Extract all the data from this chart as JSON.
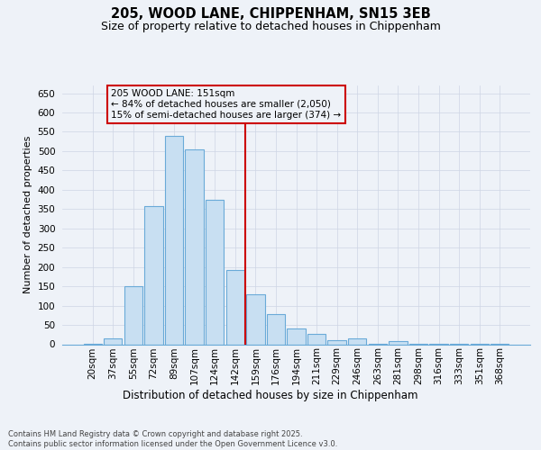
{
  "title1": "205, WOOD LANE, CHIPPENHAM, SN15 3EB",
  "title2": "Size of property relative to detached houses in Chippenham",
  "xlabel": "Distribution of detached houses by size in Chippenham",
  "ylabel": "Number of detached properties",
  "categories": [
    "20sqm",
    "37sqm",
    "55sqm",
    "72sqm",
    "89sqm",
    "107sqm",
    "124sqm",
    "142sqm",
    "159sqm",
    "176sqm",
    "194sqm",
    "211sqm",
    "229sqm",
    "246sqm",
    "263sqm",
    "281sqm",
    "298sqm",
    "316sqm",
    "333sqm",
    "351sqm",
    "368sqm"
  ],
  "values": [
    2,
    15,
    150,
    357,
    540,
    505,
    375,
    192,
    130,
    79,
    40,
    27,
    11,
    14,
    2,
    8,
    2,
    2,
    2,
    2,
    2
  ],
  "bar_color": "#c8dff2",
  "bar_edgecolor": "#6aaad8",
  "vline_color": "#cc0000",
  "vline_x": 7.5,
  "annotation_line1": "205 WOOD LANE: 151sqm",
  "annotation_line2": "← 84% of detached houses are smaller (2,050)",
  "annotation_line3": "15% of semi-detached houses are larger (374) →",
  "annotation_box_edgecolor": "#cc0000",
  "footer_line1": "Contains HM Land Registry data © Crown copyright and database right 2025.",
  "footer_line2": "Contains public sector information licensed under the Open Government Licence v3.0.",
  "ylim": [
    0,
    670
  ],
  "yticks": [
    0,
    50,
    100,
    150,
    200,
    250,
    300,
    350,
    400,
    450,
    500,
    550,
    600,
    650
  ],
  "background_color": "#eef2f8",
  "grid_color": "#cdd5e4",
  "title1_fontsize": 10.5,
  "title2_fontsize": 9.0,
  "ylabel_fontsize": 8.0,
  "xlabel_fontsize": 8.5,
  "tick_fontsize": 7.5,
  "footer_fontsize": 6.0,
  "ann_fontsize": 7.5
}
